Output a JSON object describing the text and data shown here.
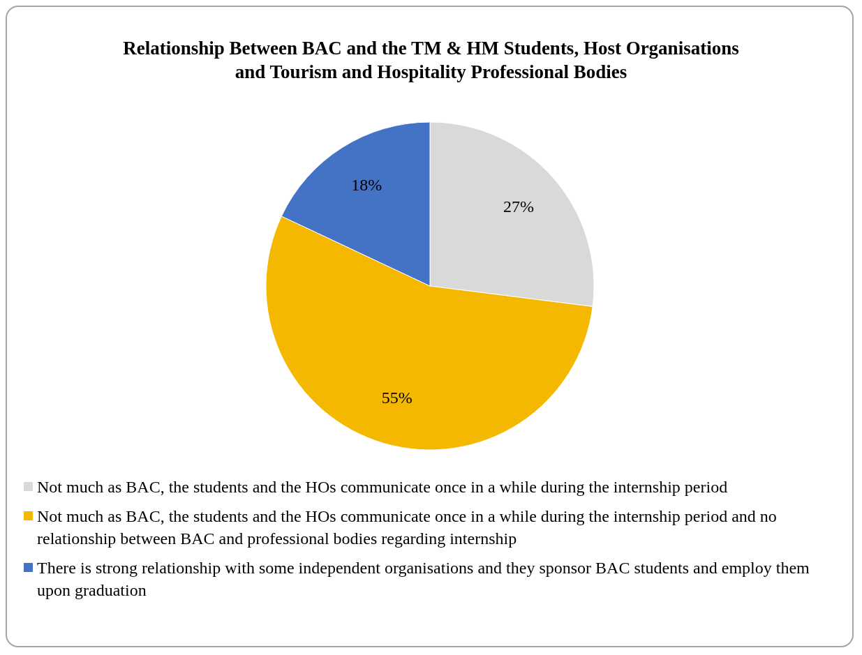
{
  "chart_data": {
    "type": "pie",
    "title": "Relationship Between BAC and the TM & HM Students, Host Organisations  and Tourism and Hospitality Professional Bodies",
    "categories": [
      "Not much as BAC, the students and the HOs communicate once in a while during the internship period",
      "Not much as BAC, the students and the HOs communicate once in a while during the internship period and no relationship between BAC and professional bodies regarding internship",
      "There is strong relationship with some independent organisations and they sponsor BAC students and employ them upon graduation"
    ],
    "values": [
      27,
      55,
      18
    ],
    "colors": [
      "#d9d9d9",
      "#f5b800",
      "#4472c4"
    ],
    "value_labels": [
      "27%",
      "55%",
      "18%"
    ],
    "legend": "bottom"
  }
}
